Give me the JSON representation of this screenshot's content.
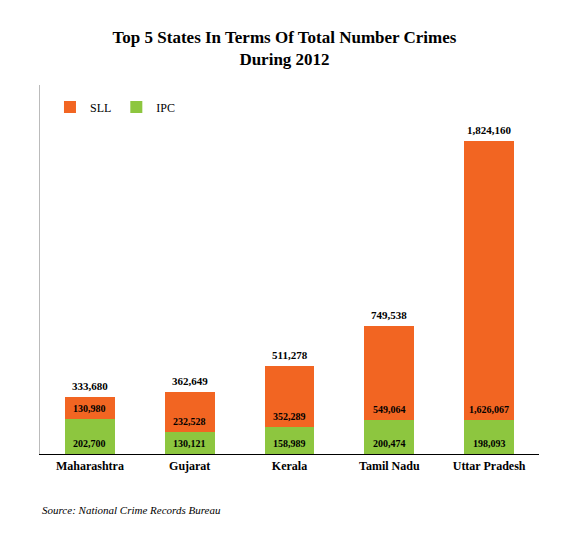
{
  "chart_data": {
    "type": "bar",
    "title": "Top 5 States In Terms Of Total Number Crimes\nDuring 2012",
    "categories": [
      "Maharashtra",
      "Gujarat",
      "Kerala",
      "Tamil Nadu",
      "Uttar Pradesh"
    ],
    "series": [
      {
        "name": "IPC",
        "color": "#8dc63f",
        "values": [
          202700,
          130121,
          158989,
          200474,
          198093
        ],
        "value_labels": [
          "202,700",
          "130,121",
          "158,989",
          "200,474",
          "198,093"
        ]
      },
      {
        "name": "SLL",
        "color": "#f26522",
        "values": [
          130980,
          232528,
          352289,
          549064,
          1626067
        ],
        "value_labels": [
          "130,980",
          "232,528",
          "352,289",
          "549,064",
          "1,626,067"
        ]
      }
    ],
    "totals": [
      333680,
      362649,
      511278,
      749538,
      1824160
    ],
    "total_labels": [
      "333,680",
      "362,649",
      "511,278",
      "749,538",
      "1,824,160"
    ],
    "stacked": true,
    "data_labels": true,
    "ylim": [
      0,
      2152508.8
    ],
    "tick_labels": "x",
    "grid": false,
    "legend": "upper left",
    "annotations": [
      "Source: National Crime Records Bureau"
    ]
  }
}
